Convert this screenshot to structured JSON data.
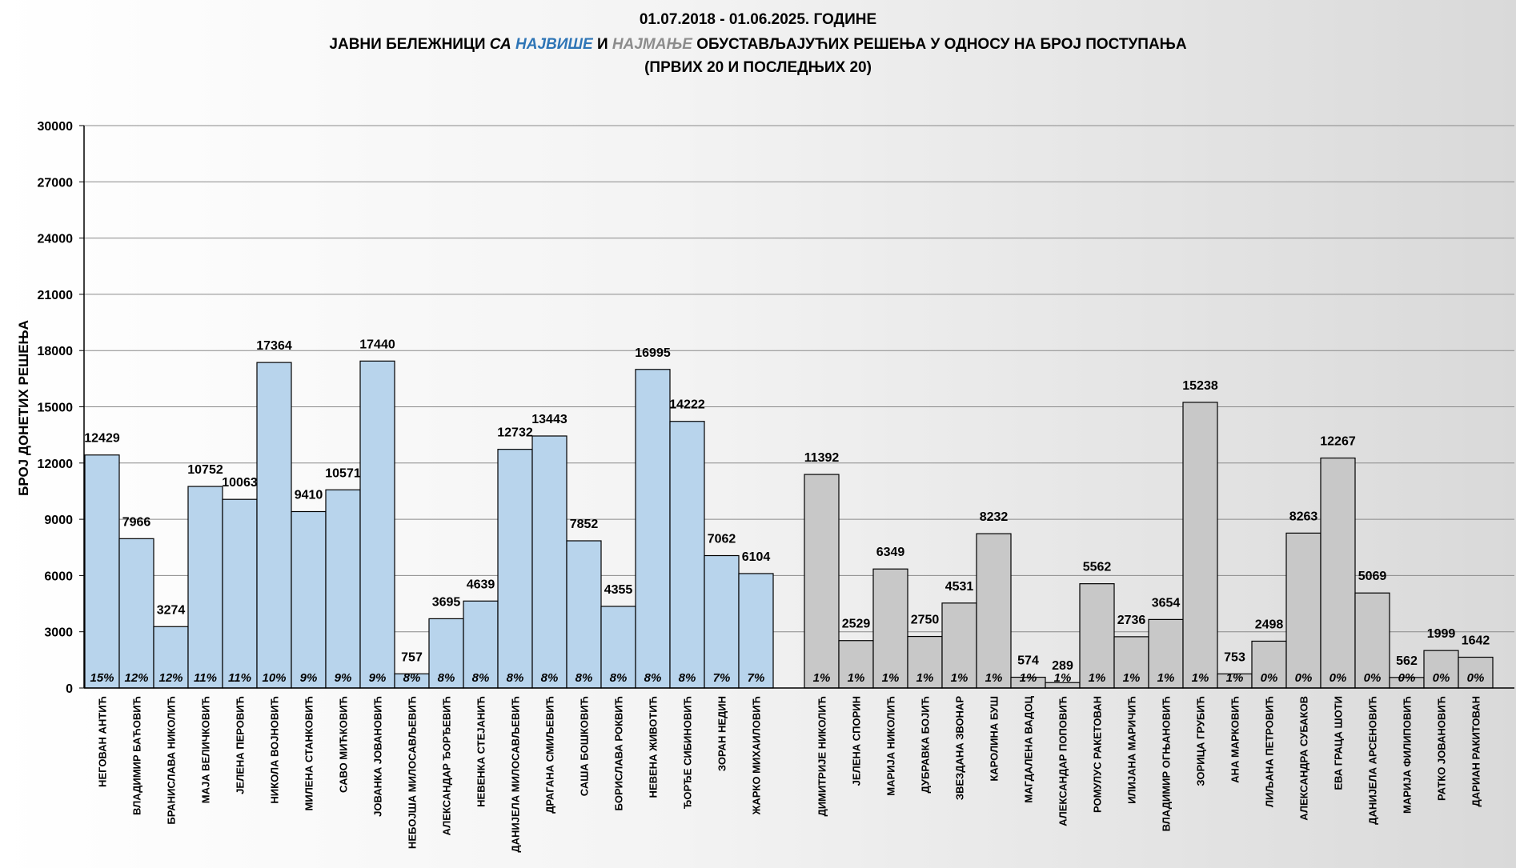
{
  "chart_data": {
    "type": "bar",
    "title_lines": [
      [
        "01.07.2018 - 01.06.2025. ГОДИНЕ"
      ],
      [
        "ЈАВНИ БЕЛЕЖНИЦИ ",
        "СА ",
        "НАЈВИШЕ",
        " И ",
        "НАЈМАЊЕ",
        " ОБУСТАВЉАЈУЋИХ РЕШЕЊА У ОДНОСУ НА БРОЈ ПОСТУПАЊА"
      ],
      [
        "(ПРВИХ 20 И ПОСЛЕДЊИХ 20)"
      ]
    ],
    "ylabel": "БРОЈ ДОНЕТИХ РЕШЕЊА",
    "ylim": [
      0,
      30000
    ],
    "yticks": [
      "0",
      "3000",
      "6000",
      "9000",
      "12000",
      "15000",
      "18000",
      "21000",
      "24000",
      "27000",
      "30000"
    ],
    "grid": true,
    "colors": {
      "top": "#b8d4ec",
      "bottom": "#c8c8c8",
      "highlight": "#2e75b6",
      "muted": "#8c8c8c"
    },
    "series": [
      {
        "group": "top",
        "categories": [
          "НЕГОВАН АНТИЋ",
          "ВЛАДИМИР БАЋОВИЋ",
          "БРАНИСЛАВА НИКОЛИЋ",
          "МАЈА ВЕЛИЧКОВИЋ",
          "ЈЕЛЕНА ПЕРОВИЋ",
          "НИКОЛА ВОЈНОВИЋ",
          "МИЛЕНА СТАНКОВИЋ",
          "САВО МИЋКОВИЋ",
          "ЈОВАНКА ЈОВАНОВИЋ",
          "НЕБОЈША МИЛОСАВЉЕВИЋ",
          "АЛЕКСАНДАР ЂОРЂЕВИЋ",
          "НЕВЕНКА СТЕЈАНИЋ",
          "ДАНИЈЕЛА МИЛОСАВЉЕВИЋ",
          "ДРАГАНА СМИЉЕВИЋ",
          "САША БОШКОВИЋ",
          "БОРИСЛАВА РОКВИЋ",
          "НЕВЕНА ЖИВОТИЋ",
          "ЂОРЂЕ СИБИНОВИЋ",
          "ЗОРАН НЕДИН",
          "ЖАРКО МИХАИЛОВИЋ"
        ],
        "values": [
          12429,
          7966,
          3274,
          10752,
          10063,
          17364,
          9410,
          10571,
          17440,
          757,
          3695,
          4639,
          12732,
          13443,
          7852,
          4355,
          16995,
          14222,
          7062,
          6104
        ],
        "value_labels": [
          "12429",
          "7966",
          "3274",
          "10752",
          "10063",
          "17364",
          "9410",
          "10571",
          "17440",
          "757",
          "3695",
          "4639",
          "12732",
          "13443",
          "7852",
          "4355",
          "16995",
          "14222",
          "7062",
          "6104"
        ],
        "percent_labels": [
          "15%",
          "12%",
          "12%",
          "11%",
          "11%",
          "10%",
          "9%",
          "9%",
          "9%",
          "8%",
          "8%",
          "8%",
          "8%",
          "8%",
          "8%",
          "8%",
          "8%",
          "8%",
          "7%",
          "7%"
        ]
      },
      {
        "group": "bottom",
        "categories": [
          "ДИМИТРИЈЕ НИКОЛИЋ",
          "ЈЕЛЕНА СПОРИН",
          "МАРИЈА НИКОЛИЋ",
          "ДУБРАВКА БОЈИЋ",
          "ЗВЕЗДАНА ЗВОНАР",
          "КАРОЛИНА БУШ",
          "МАГДАЛЕНА ВАДОЦ",
          "АЛЕКСАНДАР ПОПОВИЋ",
          "РОМУЛУС РАКЕТОВАН",
          "ИЛИЈАНА МАРИЧИЋ",
          "ВЛАДИМИР ОГЊАНОВИЋ",
          "ЗОРИЦА ГРУБИЋ",
          "АНА МАРКОВИЋ",
          "ЛИЉАНА ПЕТРОВИЋ",
          "АЛЕКСАНДРА СУБАКОВ",
          "ЕВА ГРАЦА ШОТИ",
          "ДАНИЈЕЛА АРСЕНОВИЋ",
          "МАРИЈА ФИЛИПОВИЋ",
          "РАТКО ЈОВАНОВИЋ",
          "ДАРИАН РАКИТОВАН"
        ],
        "values": [
          11392,
          2529,
          6349,
          2750,
          4531,
          8232,
          574,
          289,
          5562,
          2736,
          3654,
          15238,
          753,
          2498,
          8263,
          12267,
          5069,
          562,
          1999,
          1642
        ],
        "value_labels": [
          "11392",
          "2529",
          "6349",
          "2750",
          "4531",
          "8232",
          "574",
          "289",
          "5562",
          "2736",
          "3654",
          "15238",
          "753",
          "2498",
          "8263",
          "12267",
          "5069",
          "562",
          "1999",
          "1642"
        ],
        "percent_labels": [
          "1%",
          "1%",
          "1%",
          "1%",
          "1%",
          "1%",
          "1%",
          "1%",
          "1%",
          "1%",
          "1%",
          "1%",
          "1%",
          "0%",
          "0%",
          "0%",
          "0%",
          "0%",
          "0%",
          "0%"
        ]
      }
    ]
  }
}
